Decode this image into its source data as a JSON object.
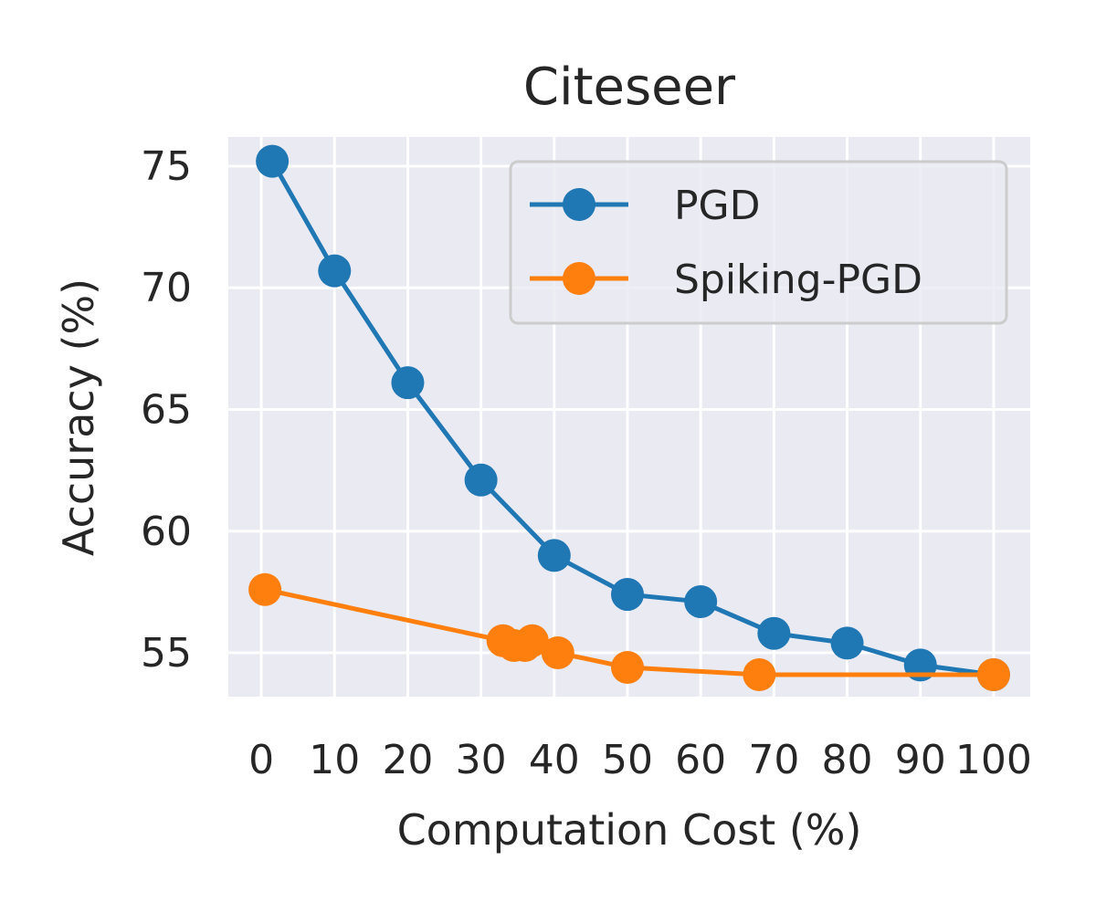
{
  "chart_data": {
    "type": "line",
    "title": "Citeseer",
    "xlabel": "Computation Cost (%)",
    "ylabel": "Accuracy (%)",
    "xlim": [
      -4.5,
      105
    ],
    "ylim": [
      53.2,
      76.2
    ],
    "xticks": [
      0,
      10,
      20,
      30,
      40,
      50,
      60,
      70,
      80,
      90,
      100
    ],
    "yticks": [
      55,
      60,
      65,
      70,
      75
    ],
    "grid": true,
    "legend_position": "upper right",
    "series": [
      {
        "name": "PGD",
        "color": "#1f77b4",
        "x": [
          1.5,
          10,
          20,
          30,
          40,
          50,
          60,
          70,
          80,
          90,
          100
        ],
        "y": [
          75.2,
          70.7,
          66.1,
          62.1,
          59.0,
          57.4,
          57.1,
          55.8,
          55.4,
          54.5,
          54.1
        ]
      },
      {
        "name": "Spiking-PGD",
        "color": "#ff7f0e",
        "x": [
          0.5,
          33,
          34.5,
          36,
          37,
          40.5,
          50,
          68,
          100
        ],
        "y": [
          57.6,
          55.5,
          55.3,
          55.3,
          55.5,
          55.0,
          54.4,
          54.1,
          54.1
        ]
      }
    ]
  }
}
